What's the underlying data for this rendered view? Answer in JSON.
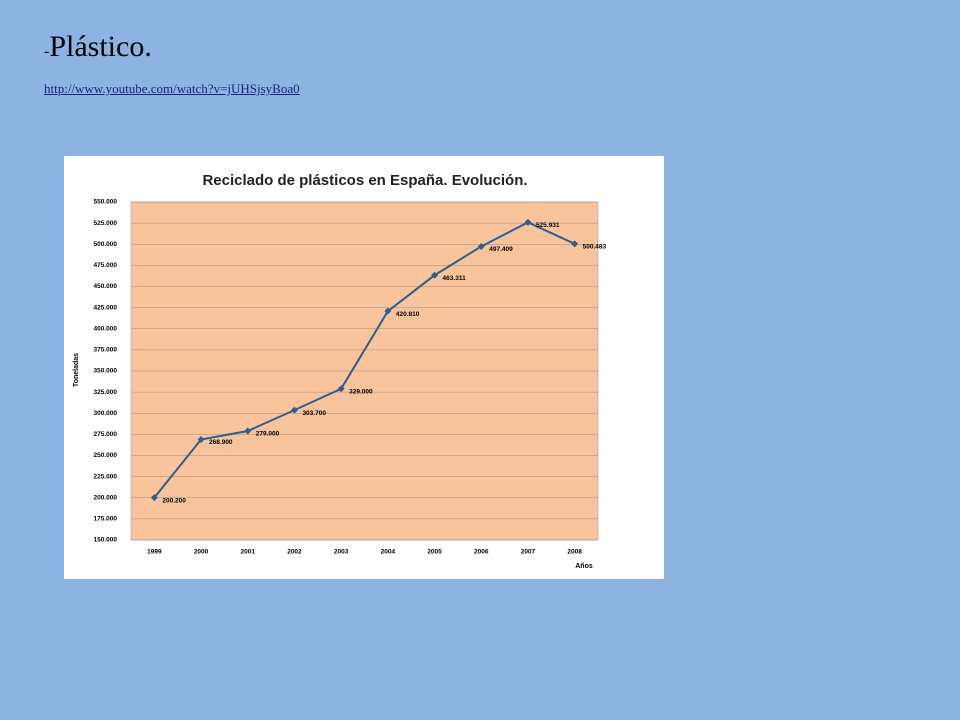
{
  "slide": {
    "title_prefix": "-",
    "title": "Plástico.",
    "link": "http://www.youtube.com/watch?v=jUHSjsyBoa0"
  },
  "chart_data": {
    "type": "line",
    "title": "Reciclado de plásticos en España. Evolución.",
    "x_label": "Años",
    "y_label": "Toneladas",
    "categories": [
      "1999",
      "2000",
      "2001",
      "2002",
      "2003",
      "2004",
      "2005",
      "2006",
      "2007",
      "2008"
    ],
    "values": [
      200200,
      268900,
      279000,
      303700,
      329000,
      420810,
      463311,
      497409,
      525931,
      500483
    ],
    "value_labels": [
      "200.200",
      "268.900",
      "279.000",
      "303.700",
      "329.000",
      "420.810",
      "463.311",
      "497.409",
      "525.931",
      "500.483"
    ],
    "color": "#2a5f8f",
    "plot_background": "#f9c39b",
    "grid": true,
    "ylim": [
      150000,
      550000
    ],
    "yticks": [
      {
        "value": 150000,
        "label": "150.000"
      },
      {
        "value": 175000,
        "label": "175.000"
      },
      {
        "value": 200000,
        "label": "200.000"
      },
      {
        "value": 225000,
        "label": "225.000"
      },
      {
        "value": 250000,
        "label": "250.000"
      },
      {
        "value": 275000,
        "label": "275.000"
      },
      {
        "value": 300000,
        "label": "300.000"
      },
      {
        "value": 325000,
        "label": "325.000"
      },
      {
        "value": 350000,
        "label": "350.000"
      },
      {
        "value": 375000,
        "label": "375.000"
      },
      {
        "value": 400000,
        "label": "400.000"
      },
      {
        "value": 425000,
        "label": "425.000"
      },
      {
        "value": 450000,
        "label": "450.000"
      },
      {
        "value": 475000,
        "label": "475.000"
      },
      {
        "value": 500000,
        "label": "500.000"
      },
      {
        "value": 525000,
        "label": "525.000"
      },
      {
        "value": 550000,
        "label": "550.000"
      }
    ]
  }
}
